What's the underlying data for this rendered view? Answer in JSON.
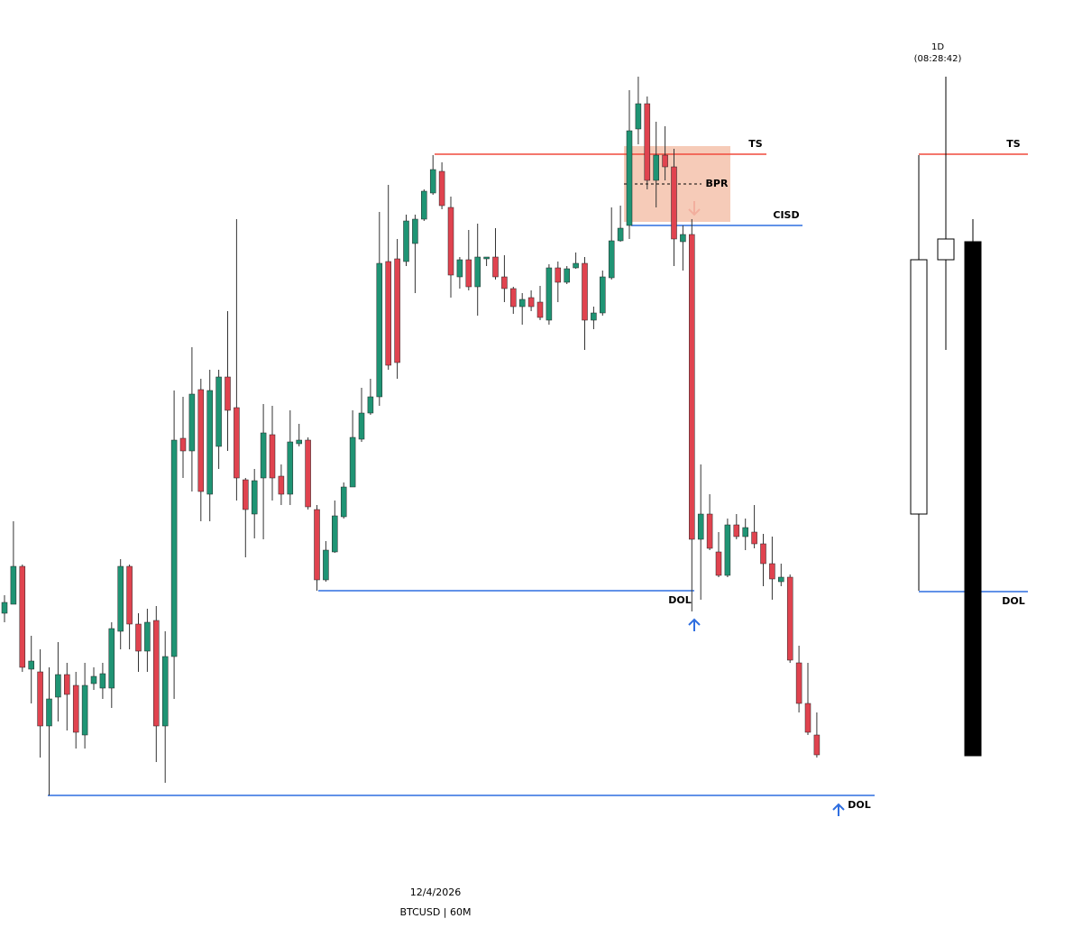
{
  "chart_data": {
    "type": "candlestick",
    "up_color": "#1f9474",
    "down_color": "#e0434f",
    "open": [
      320,
      330,
      372,
      258,
      255,
      195,
      227,
      252,
      240,
      185,
      242,
      237,
      237,
      300,
      372,
      308,
      278,
      312,
      195,
      272,
      514,
      500,
      568,
      452,
      505,
      582,
      548,
      468,
      430,
      470,
      518,
      472,
      452,
      508,
      512,
      435,
      357,
      388,
      427,
      460,
      513,
      542,
      560,
      710,
      713,
      710,
      730,
      757,
      786,
      810,
      770,
      693,
      712,
      682,
      713,
      715,
      693,
      680,
      660,
      670,
      665,
      645,
      703,
      687,
      703,
      708,
      645,
      653,
      692,
      733,
      750,
      857,
      885,
      800,
      828,
      815,
      732,
      740,
      402,
      430,
      388,
      362,
      418,
      405,
      410,
      397,
      375,
      355,
      360,
      265,
      220,
      185
    ],
    "high": [
      340,
      422,
      374,
      295,
      280,
      260,
      288,
      265,
      255,
      265,
      260,
      265,
      310,
      380,
      374,
      320,
      325,
      328,
      300,
      567,
      560,
      615,
      580,
      590,
      590,
      655,
      757,
      470,
      480,
      552,
      550,
      485,
      545,
      530,
      515,
      440,
      400,
      445,
      465,
      545,
      570,
      580,
      765,
      795,
      735,
      762,
      762,
      790,
      828,
      820,
      782,
      715,
      745,
      752,
      715,
      747,
      717,
      682,
      675,
      678,
      683,
      707,
      710,
      705,
      720,
      715,
      660,
      700,
      770,
      772,
      900,
      915,
      893,
      865,
      860,
      835,
      750,
      757,
      485,
      452,
      410,
      425,
      430,
      425,
      440,
      408,
      405,
      375,
      363,
      284,
      265,
      210
    ],
    "low": [
      310,
      332,
      255,
      220,
      160,
      118,
      200,
      190,
      170,
      170,
      235,
      225,
      215,
      280,
      280,
      255,
      255,
      155,
      132,
      225,
      470,
      455,
      422,
      422,
      480,
      500,
      445,
      382,
      403,
      402,
      445,
      440,
      440,
      505,
      435,
      345,
      355,
      387,
      425,
      460,
      510,
      540,
      550,
      590,
      580,
      705,
      675,
      755,
      784,
      768,
      670,
      680,
      678,
      650,
      705,
      690,
      665,
      652,
      640,
      655,
      645,
      640,
      665,
      685,
      702,
      612,
      635,
      650,
      690,
      732,
      735,
      840,
      790,
      770,
      800,
      705,
      700,
      322,
      335,
      390,
      360,
      360,
      402,
      390,
      392,
      350,
      335,
      350,
      265,
      210,
      185,
      160
    ],
    "close": [
      332,
      372,
      260,
      267,
      195,
      225,
      252,
      230,
      188,
      240,
      250,
      253,
      303,
      372,
      308,
      278,
      310,
      195,
      272,
      512,
      500,
      563,
      455,
      567,
      582,
      545,
      470,
      435,
      467,
      520,
      470,
      452,
      510,
      512,
      438,
      357,
      390,
      428,
      460,
      515,
      542,
      560,
      708,
      595,
      598,
      755,
      757,
      788,
      812,
      772,
      695,
      712,
      682,
      715,
      715,
      693,
      680,
      660,
      668,
      660,
      648,
      703,
      687,
      702,
      708,
      645,
      653,
      693,
      733,
      747,
      855,
      885,
      800,
      828,
      815,
      735,
      740,
      402,
      430,
      392,
      362,
      418,
      405,
      415,
      397,
      375,
      358,
      360,
      268,
      220,
      188,
      163
    ],
    "levels": [
      {
        "label": "TS",
        "value": 829,
        "color": "#f04a3c"
      },
      {
        "label": "CISD",
        "value": 750,
        "color": "#2f6ee0"
      },
      {
        "label": "DOL",
        "value": 345,
        "color": "#2f6ee0"
      },
      {
        "label": "DOL",
        "value": 118,
        "color": "#2f6ee0"
      }
    ],
    "zone": {
      "label": "BPR",
      "top": 838,
      "bottom": 754,
      "mid": 796,
      "color": "#f5c2ab"
    },
    "daily": {
      "timeframe": "1D",
      "countdown": "(08:28:42)",
      "open": [
        430,
        712,
        732
      ],
      "high": [
        828,
        915,
        757
      ],
      "low": [
        345,
        612,
        162
      ],
      "close": [
        712,
        735,
        162
      ],
      "colors": [
        "#ffffff",
        "#ffffff",
        "#000000"
      ],
      "levels": [
        {
          "label": "TS",
          "value": 829,
          "color": "#f04a3c"
        },
        {
          "label": "DOL",
          "value": 344,
          "color": "#2f6ee0"
        }
      ]
    },
    "date": "12/4/2026",
    "symbol": "BTCUSD | 60M"
  }
}
